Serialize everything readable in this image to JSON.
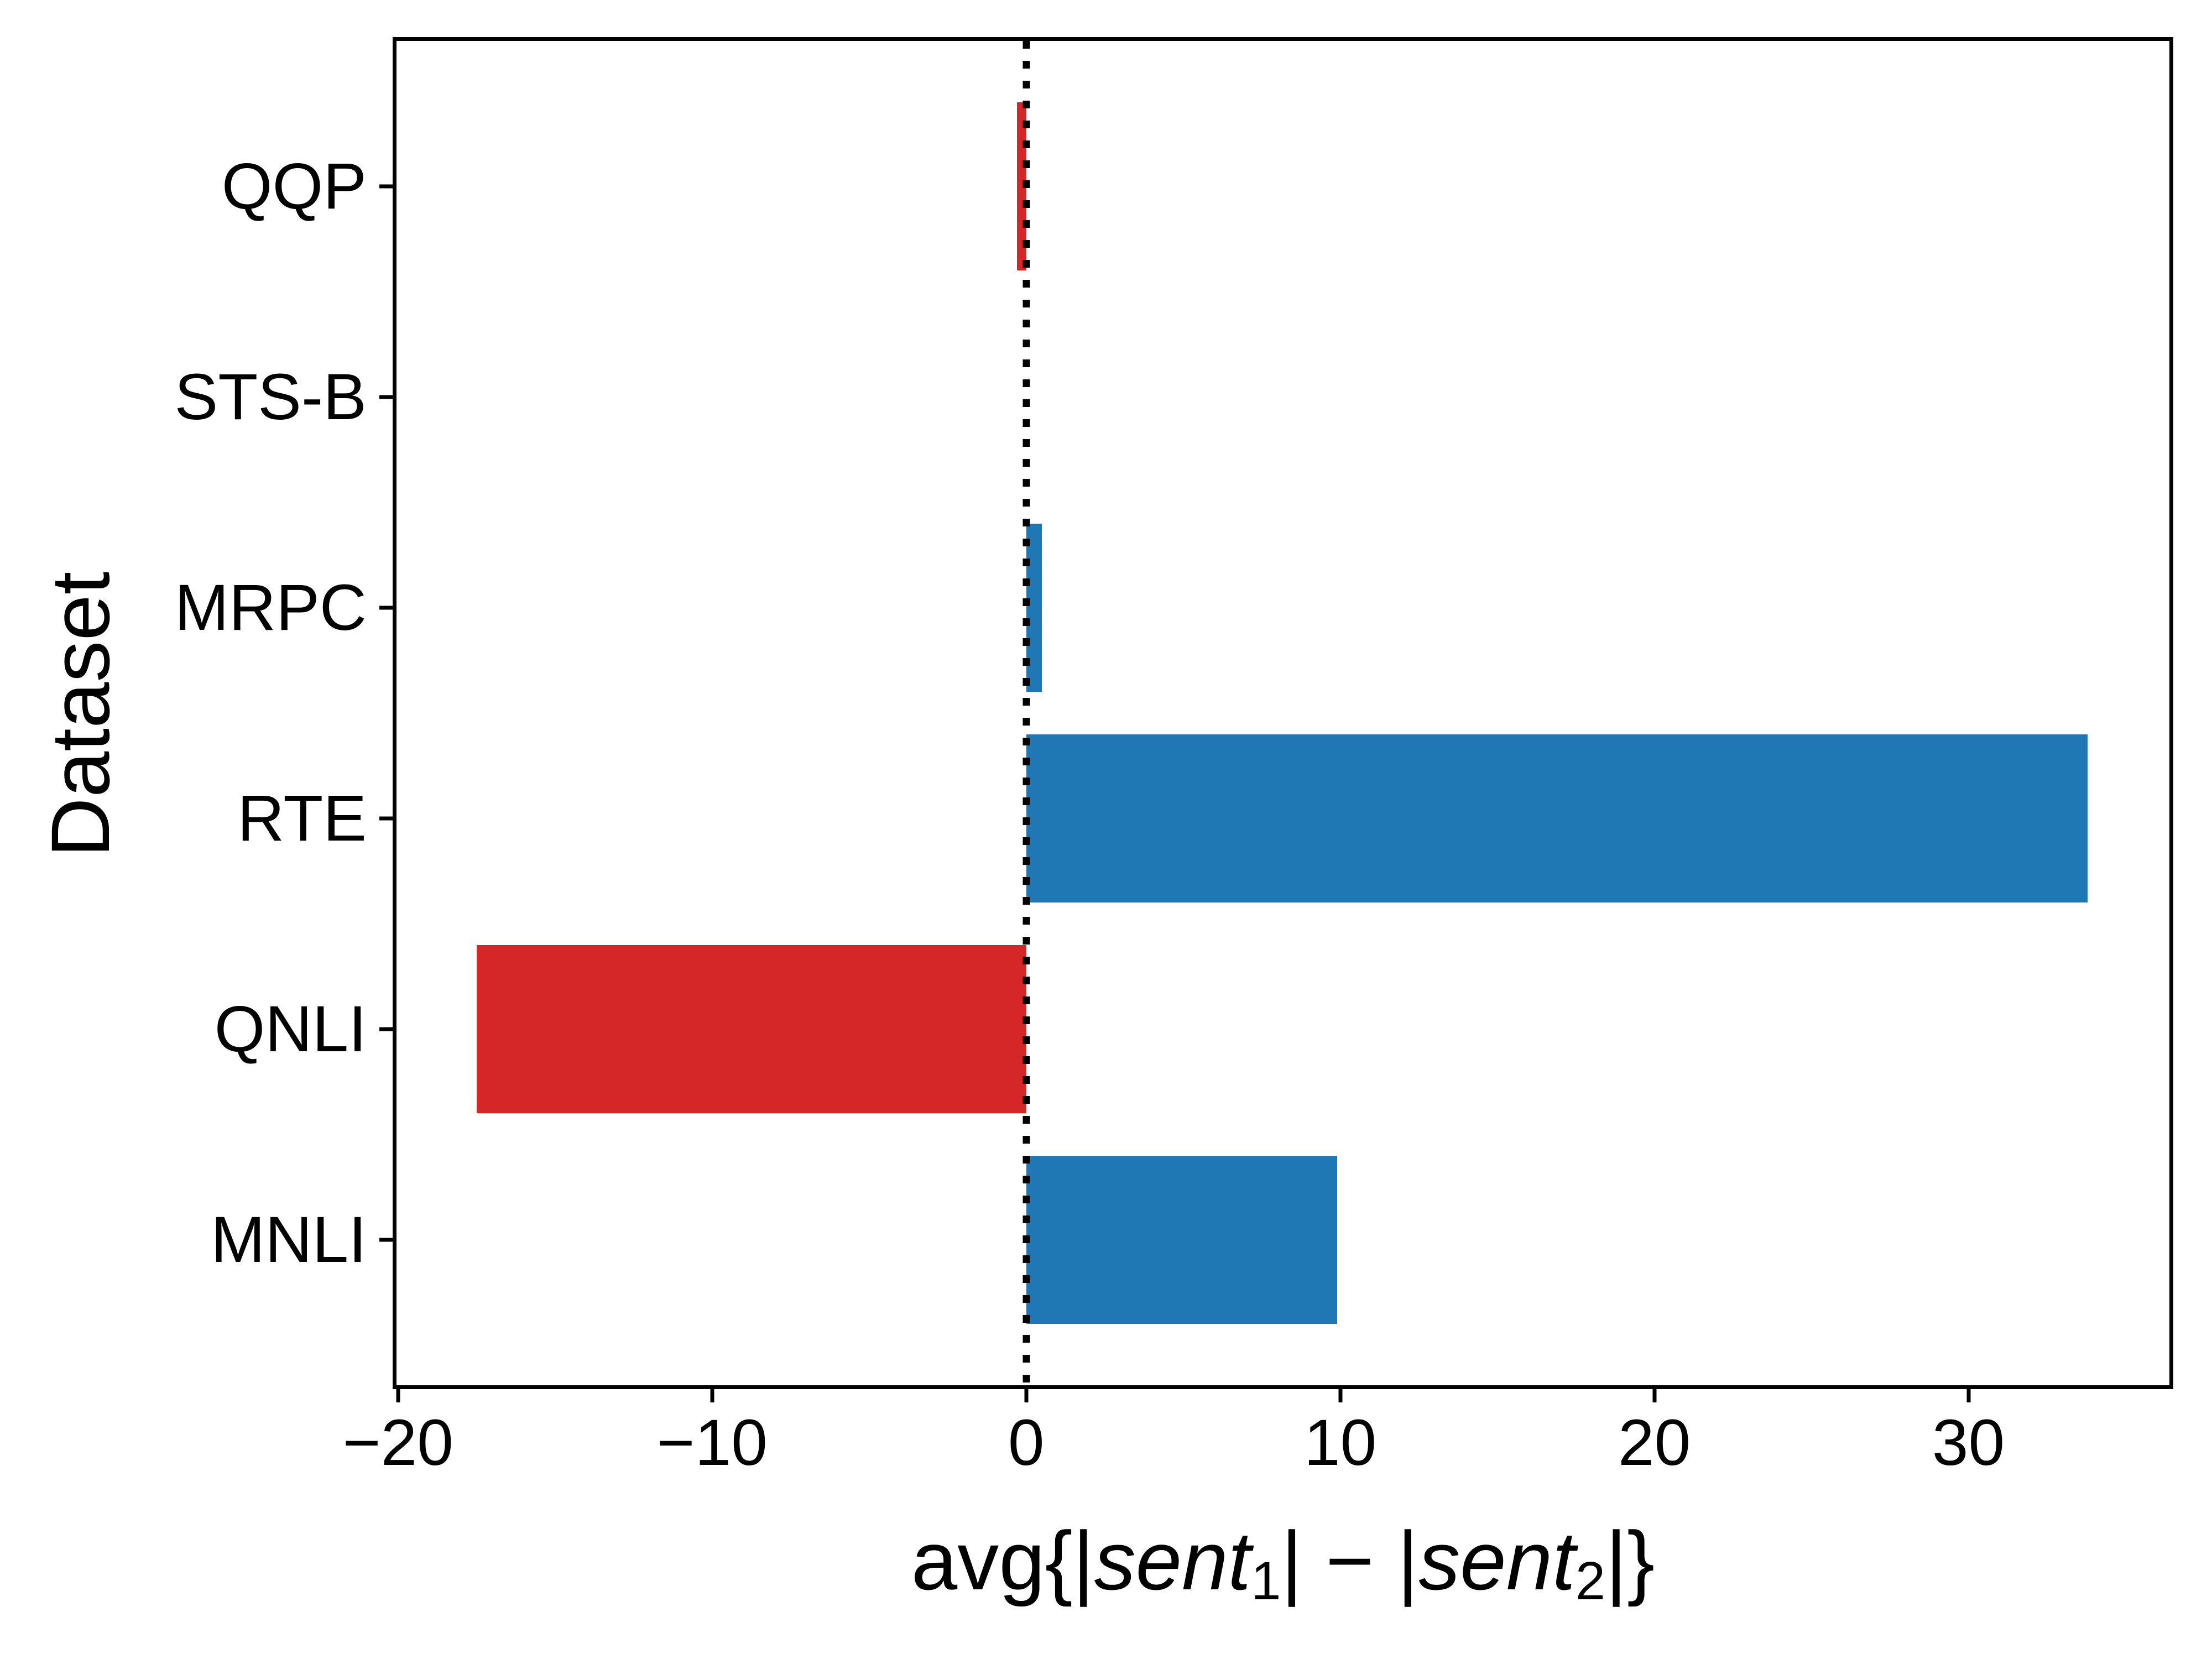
{
  "chart_data": {
    "type": "bar",
    "orientation": "horizontal",
    "title": "",
    "ylabel": "Dataset",
    "xlabel": "avg{|sent1| − |sent2|}",
    "xlabel_parts": {
      "prefix": "avg{|",
      "italic1": "sent",
      "sub1": "1",
      "middle": "| − |",
      "italic2": "sent",
      "sub2": "2",
      "suffix": "|}"
    },
    "categories": [
      "QQP",
      "STS-B",
      "MRPC",
      "RTE",
      "QNLI",
      "MNLI"
    ],
    "values": [
      -0.3,
      0,
      0.5,
      33.8,
      -17.5,
      9.9
    ],
    "positive_color": "#1f77b4",
    "negative_color": "#d62728",
    "x_ticks": [
      -20,
      -10,
      0,
      10,
      20,
      30
    ],
    "x_tick_labels": [
      "−20",
      "−10",
      "0",
      "10",
      "20",
      "30"
    ],
    "xlim": [
      -20.05,
      36.4
    ],
    "y_padding": 0.69,
    "bar_height": 0.8,
    "zero_line": {
      "x": 0,
      "style": "dotted",
      "color": "#000000"
    },
    "grid": false,
    "legend": null,
    "background_color": "#ffffff",
    "axis_color": "#000000"
  }
}
